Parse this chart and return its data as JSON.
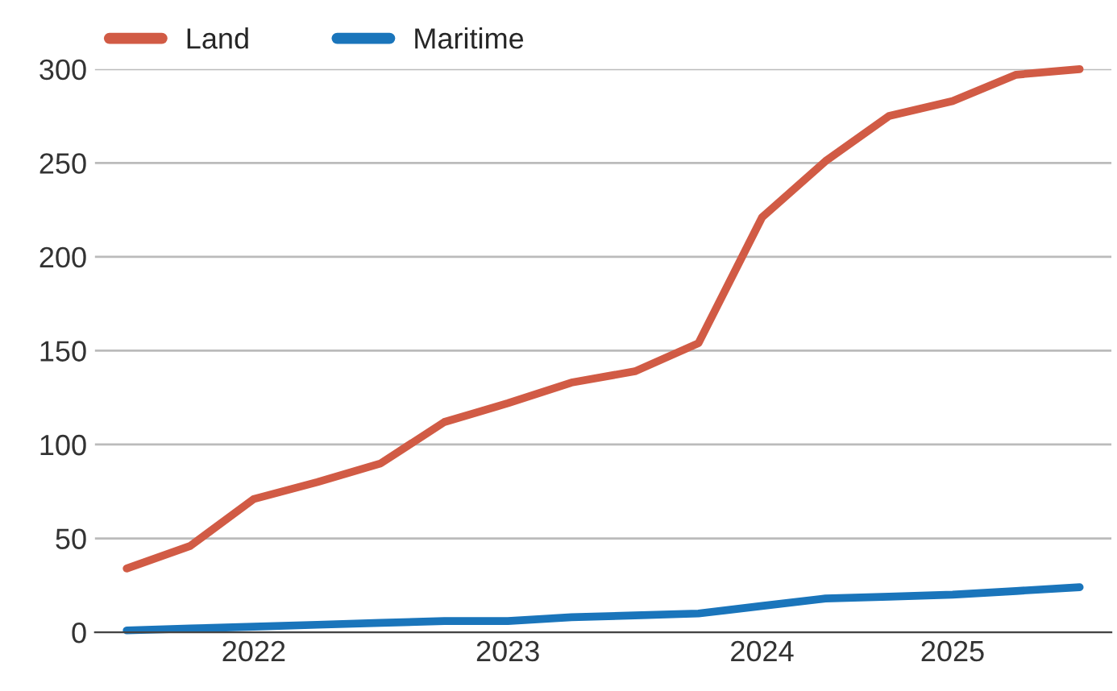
{
  "chart_data": {
    "type": "line",
    "categories": [
      null,
      null,
      "2022",
      null,
      null,
      null,
      "2023",
      null,
      null,
      null,
      "2024",
      null,
      null,
      "2025",
      null,
      null
    ],
    "series": [
      {
        "name": "Land",
        "color": "#d15b45",
        "values": [
          34,
          46,
          71,
          80,
          90,
          112,
          122,
          133,
          139,
          154,
          221,
          251,
          275,
          283,
          297,
          300
        ]
      },
      {
        "name": "Maritime",
        "color": "#1a75bb",
        "values": [
          1,
          2,
          3,
          4,
          5,
          6,
          6,
          8,
          9,
          10,
          14,
          18,
          19,
          20,
          22,
          24
        ]
      }
    ],
    "ylim": [
      0,
      300
    ],
    "yticks": [
      0,
      50,
      100,
      150,
      200,
      250,
      300
    ],
    "grid": "y",
    "legend": "top left",
    "marker": "none",
    "line_style": "solid"
  }
}
